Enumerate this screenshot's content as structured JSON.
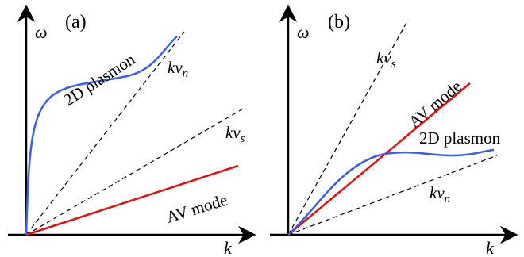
{
  "colors": {
    "axis": "#000000",
    "plasmon": "#3a5fe0",
    "av_mode": "#e01010",
    "velocity_line": "#000000"
  },
  "panels": [
    {
      "panel_label": "(a)",
      "y_axis_label": "ω",
      "x_axis_label": "k",
      "plasmon_label": "2D plasmon",
      "av_mode_label": "AV mode",
      "kv_n": {
        "main": "kv",
        "sub": "n"
      },
      "kv_s": {
        "main": "kv",
        "sub": "s"
      }
    },
    {
      "panel_label": "(b)",
      "y_axis_label": "ω",
      "x_axis_label": "k",
      "plasmon_label": "2D plasmon",
      "av_mode_label": "AV mode",
      "kv_s": {
        "main": "kv",
        "sub": "s"
      },
      "kv_n": {
        "main": "kv",
        "sub": "n"
      }
    }
  ]
}
